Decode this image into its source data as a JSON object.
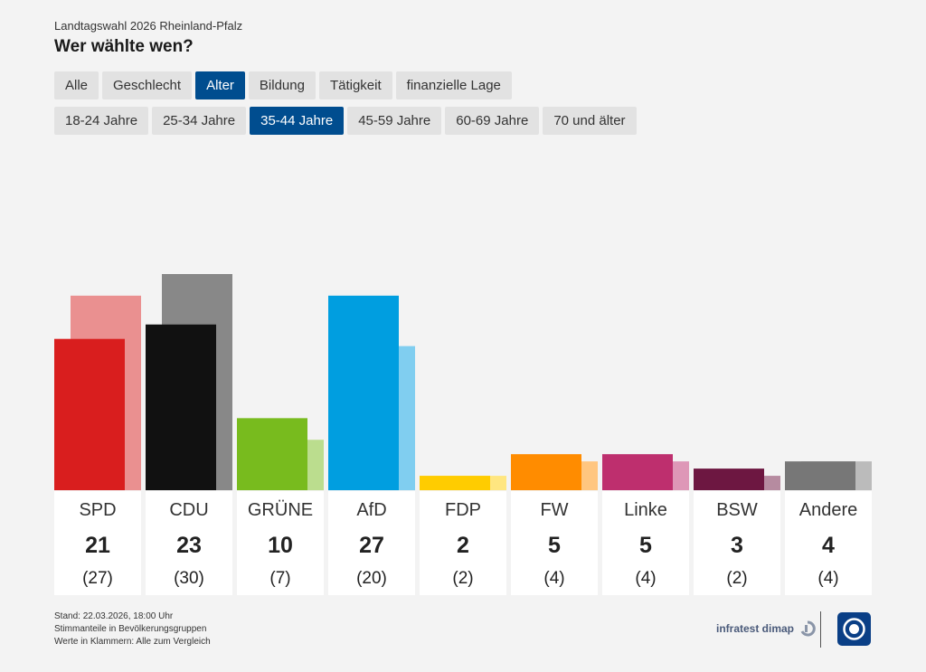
{
  "header": {
    "kicker": "Landtagswahl 2026 Rheinland-Pfalz",
    "title": "Wer wählte wen?"
  },
  "filters": {
    "categories": [
      {
        "label": "Alle",
        "active": false
      },
      {
        "label": "Geschlecht",
        "active": false
      },
      {
        "label": "Alter",
        "active": true
      },
      {
        "label": "Bildung",
        "active": false
      },
      {
        "label": "Tätigkeit",
        "active": false
      },
      {
        "label": "finanzielle Lage",
        "active": false
      }
    ],
    "age_groups": [
      {
        "label": "18-24 Jahre",
        "active": false
      },
      {
        "label": "25-34 Jahre",
        "active": false
      },
      {
        "label": "35-44 Jahre",
        "active": true
      },
      {
        "label": "45-59 Jahre",
        "active": false
      },
      {
        "label": "60-69 Jahre",
        "active": false
      },
      {
        "label": "70 und älter",
        "active": false
      }
    ]
  },
  "chart_data": {
    "type": "bar",
    "title": "Wer wählte wen?",
    "subtitle": "35-44 Jahre",
    "categories": [
      "SPD",
      "CDU",
      "GRÜNE",
      "AfD",
      "FDP",
      "FW",
      "Linke",
      "BSW",
      "Andere"
    ],
    "series": [
      {
        "name": "35-44 Jahre",
        "values": [
          21,
          23,
          10,
          27,
          2,
          5,
          5,
          3,
          4
        ]
      },
      {
        "name": "Alle zum Vergleich",
        "values": [
          27,
          30,
          7,
          20,
          2,
          4,
          4,
          2,
          4
        ]
      }
    ],
    "value_labels": [
      "21",
      "23",
      "10",
      "27",
      "2",
      "5",
      "5",
      "3",
      "4"
    ],
    "compare_labels": [
      "(27)",
      "(30)",
      "(7)",
      "(20)",
      "(2)",
      "(4)",
      "(4)",
      "(2)",
      "(4)"
    ],
    "ylim": [
      0,
      30
    ],
    "xlabel": "",
    "ylabel": "",
    "grid": false,
    "colors": {
      "main": [
        "#d91e1e",
        "#111111",
        "#78bb1e",
        "#009ee0",
        "#ffcc00",
        "#ff8c00",
        "#be2f6e",
        "#6d1741",
        "#777777"
      ],
      "compare": [
        "#ea9090",
        "#888888",
        "#bbdd8e",
        "#80cef0",
        "#ffe680",
        "#ffc680",
        "#de97b7",
        "#b68ba0",
        "#bbbbbb"
      ]
    }
  },
  "footer": {
    "lines": [
      "Stand: 22.03.2026, 18:00 Uhr",
      "Stimmanteile in Bevölkerungsgruppen",
      "Werte in Klammern: Alle zum Vergleich"
    ],
    "brand": "infratest dimap"
  }
}
